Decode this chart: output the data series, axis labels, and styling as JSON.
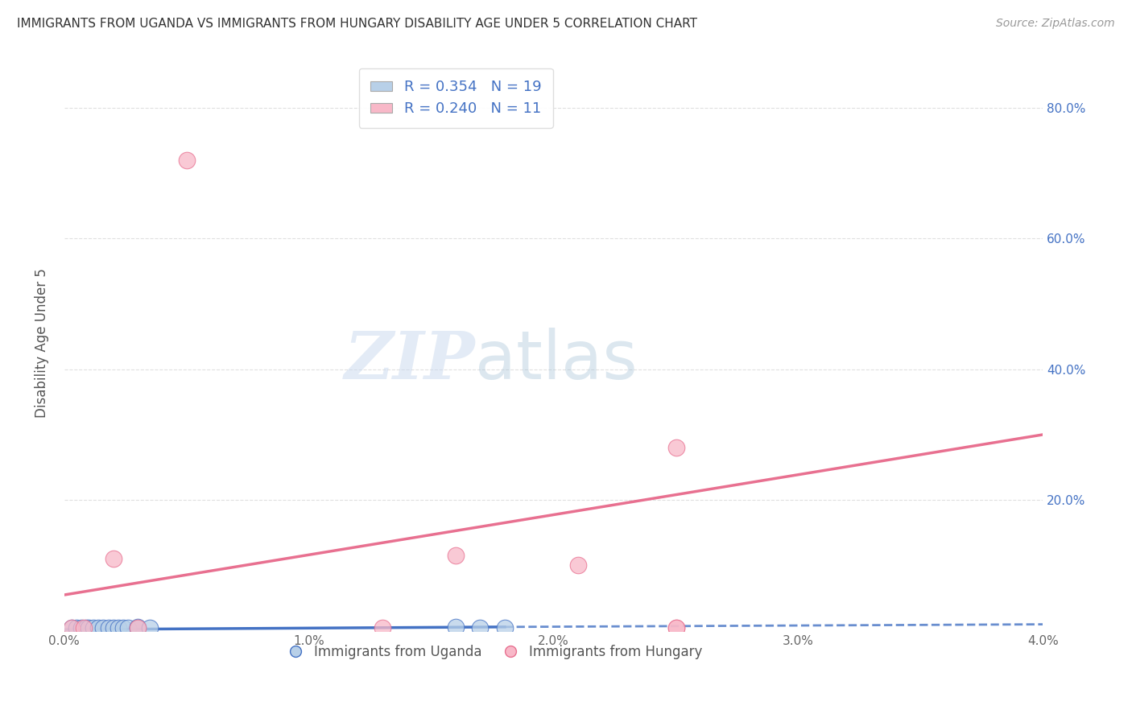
{
  "title": "IMMIGRANTS FROM UGANDA VS IMMIGRANTS FROM HUNGARY DISABILITY AGE UNDER 5 CORRELATION CHART",
  "source": "Source: ZipAtlas.com",
  "ylabel": "Disability Age Under 5",
  "xlim": [
    0.0,
    0.04
  ],
  "ylim": [
    0.0,
    0.88
  ],
  "xtick_labels": [
    "0.0%",
    "1.0%",
    "2.0%",
    "3.0%",
    "4.0%"
  ],
  "xtick_values": [
    0.0,
    0.01,
    0.02,
    0.03,
    0.04
  ],
  "ytick_labels": [
    "20.0%",
    "40.0%",
    "60.0%",
    "80.0%"
  ],
  "ytick_values": [
    0.2,
    0.4,
    0.6,
    0.8
  ],
  "uganda_scatter_x": [
    0.0003,
    0.0005,
    0.0007,
    0.0009,
    0.001,
    0.0012,
    0.0014,
    0.0016,
    0.0018,
    0.002,
    0.0022,
    0.0024,
    0.0026,
    0.003,
    0.003,
    0.0035,
    0.016,
    0.017,
    0.018
  ],
  "uganda_scatter_y": [
    0.004,
    0.004,
    0.004,
    0.004,
    0.004,
    0.004,
    0.004,
    0.004,
    0.004,
    0.004,
    0.004,
    0.004,
    0.004,
    0.004,
    0.006,
    0.004,
    0.006,
    0.004,
    0.004
  ],
  "hungary_scatter_x": [
    0.0003,
    0.0008,
    0.002,
    0.003,
    0.005,
    0.013,
    0.021,
    0.025,
    0.025,
    0.025,
    0.016
  ],
  "hungary_scatter_y": [
    0.004,
    0.004,
    0.11,
    0.004,
    0.72,
    0.004,
    0.1,
    0.004,
    0.004,
    0.28,
    0.115
  ],
  "uganda_trendline_x": [
    0.0,
    0.04
  ],
  "uganda_trendline_y": [
    0.002,
    0.01
  ],
  "hungary_trendline_x": [
    0.0,
    0.04
  ],
  "hungary_trendline_y": [
    0.055,
    0.3
  ],
  "uganda_scatter_color": "#b8d0e8",
  "hungary_scatter_color": "#f8b8c8",
  "uganda_line_color": "#4472c4",
  "hungary_line_color": "#e87090",
  "R_uganda": "0.354",
  "N_uganda": "19",
  "R_hungary": "0.240",
  "N_hungary": "11",
  "legend_labels": [
    "Immigrants from Uganda",
    "Immigrants from Hungary"
  ],
  "watermark_zip": "ZIP",
  "watermark_atlas": "atlas",
  "title_color": "#333333",
  "right_axis_color": "#4472c4",
  "grid_color": "#cccccc"
}
